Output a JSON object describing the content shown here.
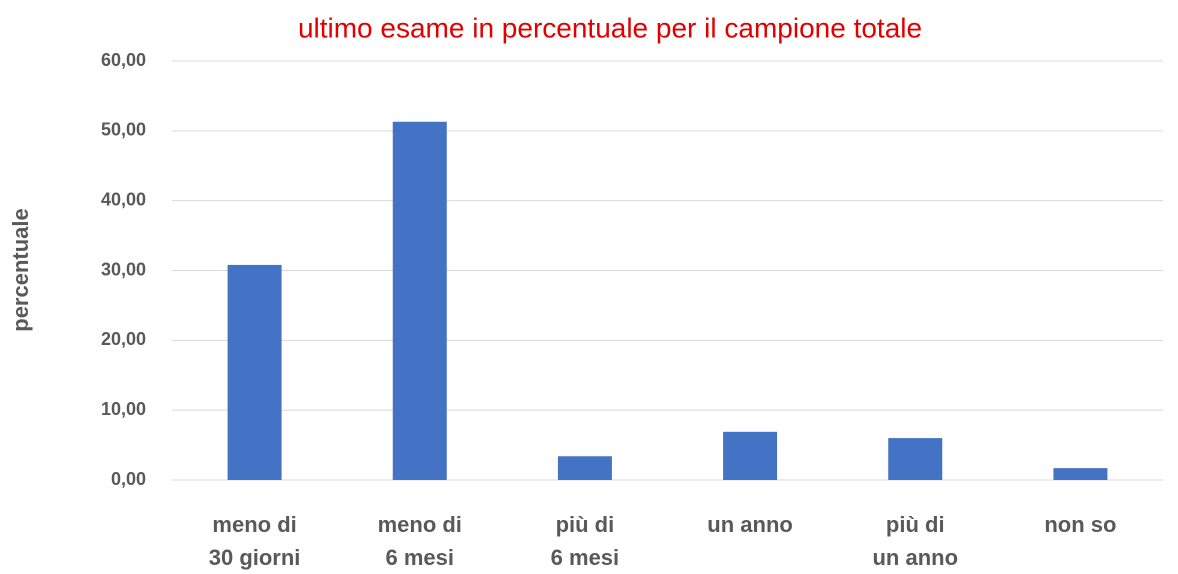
{
  "chart_data": {
    "type": "bar",
    "title": "ultimo esame in percentuale per il campione totale",
    "ylabel": "percentuale",
    "categories": [
      "meno di\n30 giorni",
      "meno di\n6 mesi",
      "più di\n6 mesi",
      "un anno",
      "più di\nun anno",
      "non so"
    ],
    "values": [
      30.8,
      51.3,
      3.4,
      6.9,
      6.0,
      1.7
    ],
    "color": "#4472c4",
    "ylim": [
      0,
      60
    ],
    "yticks": [
      {
        "value": 0,
        "label": "0,00"
      },
      {
        "value": 10,
        "label": "10,00"
      },
      {
        "value": 20,
        "label": "20,00"
      },
      {
        "value": 30,
        "label": "30,00"
      },
      {
        "value": 40,
        "label": "40,00"
      },
      {
        "value": 50,
        "label": "50,00"
      },
      {
        "value": 60,
        "label": "60,00"
      }
    ],
    "grid": true
  }
}
